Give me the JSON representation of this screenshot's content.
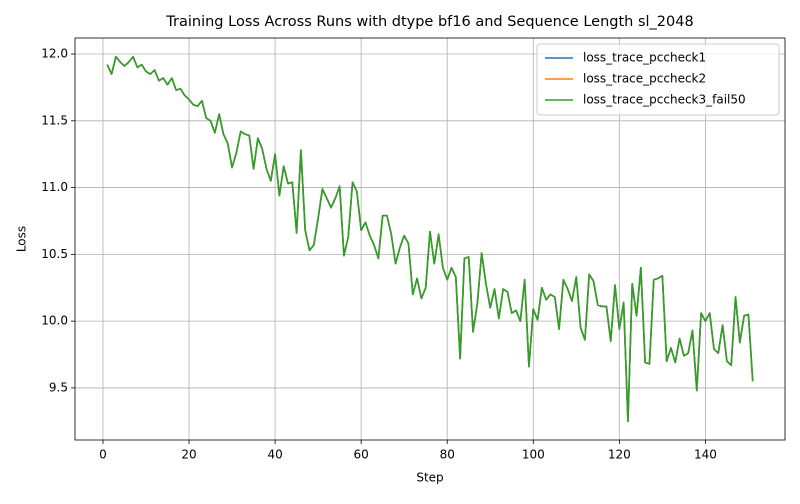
{
  "chart_data": {
    "type": "line",
    "title": "Training Loss Across Runs with dtype bf16 and Sequence Length sl_2048",
    "x_label": "Step",
    "y_label": "Loss",
    "x": [
      1,
      2,
      3,
      4,
      5,
      6,
      7,
      8,
      9,
      10,
      11,
      12,
      13,
      14,
      15,
      16,
      17,
      18,
      19,
      20,
      21,
      22,
      23,
      24,
      25,
      26,
      27,
      28,
      29,
      30,
      31,
      32,
      33,
      34,
      35,
      36,
      37,
      38,
      39,
      40,
      41,
      42,
      43,
      44,
      45,
      46,
      47,
      48,
      49,
      50,
      51,
      52,
      53,
      54,
      55,
      56,
      57,
      58,
      59,
      60,
      61,
      62,
      63,
      64,
      65,
      66,
      67,
      68,
      69,
      70,
      71,
      72,
      73,
      74,
      75,
      76,
      77,
      78,
      79,
      80,
      81,
      82,
      83,
      84,
      85,
      86,
      87,
      88,
      89,
      90,
      91,
      92,
      93,
      94,
      95,
      96,
      97,
      98,
      99,
      100,
      101,
      102,
      103,
      104,
      105,
      106,
      107,
      108,
      109,
      110,
      111,
      112,
      113,
      114,
      115,
      116,
      117,
      118,
      119,
      120,
      121,
      122,
      123,
      124,
      125,
      126,
      127,
      128,
      129,
      130,
      131,
      132,
      133,
      134,
      135,
      136,
      137,
      138,
      139,
      140,
      141,
      142,
      143,
      144,
      145,
      146,
      147,
      148,
      149,
      150,
      151
    ],
    "series": [
      {
        "name": "loss_trace_pccheck1",
        "color": "#1f77b4",
        "values": [
          11.92,
          11.85,
          11.98,
          11.94,
          11.91,
          11.94,
          11.98,
          11.9,
          11.92,
          11.87,
          11.85,
          11.88,
          11.8,
          11.82,
          11.77,
          11.82,
          11.73,
          11.74,
          11.69,
          11.66,
          11.62,
          11.61,
          11.65,
          11.52,
          11.5,
          11.41,
          11.55,
          11.4,
          11.33,
          11.15,
          11.26,
          11.42,
          11.4,
          11.39,
          11.14,
          11.37,
          11.29,
          11.14,
          11.05,
          11.25,
          10.94,
          11.16,
          11.03,
          11.04,
          10.66,
          11.28,
          10.68,
          10.53,
          10.57,
          10.77,
          10.99,
          10.92,
          10.85,
          10.92,
          11.01,
          10.49,
          10.63,
          11.04,
          10.97,
          10.68,
          10.74,
          10.64,
          10.57,
          10.47,
          10.79,
          10.79,
          10.65,
          10.43,
          10.55,
          10.64,
          10.58,
          10.2,
          10.32,
          10.17,
          10.25,
          10.67,
          10.43,
          10.65,
          10.4,
          10.31,
          10.4,
          10.33,
          9.72,
          10.47,
          10.48,
          9.92,
          10.13,
          10.51,
          10.28,
          10.1,
          10.24,
          10.02,
          10.24,
          10.22,
          10.06,
          10.08,
          10.0,
          10.31,
          9.66,
          10.09,
          10.01,
          10.25,
          10.16,
          10.2,
          10.18,
          9.94,
          10.31,
          10.24,
          10.15,
          10.33,
          9.95,
          9.86,
          10.35,
          10.3,
          10.12,
          10.11,
          10.11,
          9.85,
          10.27,
          9.94,
          10.14,
          9.25,
          10.28,
          10.04,
          10.4,
          9.69,
          9.68,
          10.31,
          10.32,
          10.34,
          9.7,
          9.8,
          9.69,
          9.87,
          9.74,
          9.76,
          9.93,
          9.48,
          10.06,
          10.0,
          10.06,
          9.79,
          9.76,
          9.97,
          9.7,
          9.67,
          10.18,
          9.84,
          10.04,
          10.05,
          9.55
        ]
      },
      {
        "name": "loss_trace_pccheck2",
        "color": "#ff7f0e",
        "values": [
          11.92,
          11.85,
          11.98,
          11.94,
          11.91,
          11.94,
          11.98,
          11.9,
          11.92,
          11.87,
          11.85,
          11.88,
          11.8,
          11.82,
          11.77,
          11.82,
          11.73,
          11.74,
          11.69,
          11.66,
          11.62,
          11.61,
          11.65,
          11.52,
          11.5,
          11.41,
          11.55,
          11.4,
          11.33,
          11.15,
          11.26,
          11.42,
          11.4,
          11.39,
          11.14,
          11.37,
          11.29,
          11.14,
          11.05,
          11.25,
          10.94,
          11.16,
          11.03,
          11.04,
          10.66,
          11.28,
          10.68,
          10.53,
          10.57,
          10.77,
          10.99,
          10.92,
          10.85,
          10.92,
          11.01,
          10.49,
          10.63,
          11.04,
          10.97,
          10.68,
          10.74,
          10.64,
          10.57,
          10.47,
          10.79,
          10.79,
          10.65,
          10.43,
          10.55,
          10.64,
          10.58,
          10.2,
          10.32,
          10.17,
          10.25,
          10.67,
          10.43,
          10.65,
          10.4,
          10.31,
          10.4,
          10.33,
          9.72,
          10.47,
          10.48,
          9.92,
          10.13,
          10.51,
          10.28,
          10.1,
          10.24,
          10.02,
          10.24,
          10.22,
          10.06,
          10.08,
          10.0,
          10.31,
          9.66,
          10.09,
          10.01,
          10.25,
          10.16,
          10.2,
          10.18,
          9.94,
          10.31,
          10.24,
          10.15,
          10.33,
          9.95,
          9.86,
          10.35,
          10.3,
          10.12,
          10.11,
          10.11,
          9.85,
          10.27,
          9.94,
          10.14,
          9.25,
          10.28,
          10.04,
          10.4,
          9.69,
          9.68,
          10.31,
          10.32,
          10.34,
          9.7,
          9.8,
          9.69,
          9.87,
          9.74,
          9.76,
          9.93,
          9.48,
          10.06,
          10.0,
          10.06,
          9.79,
          9.76,
          9.97,
          9.7,
          9.67,
          10.18,
          9.84,
          10.04,
          10.05,
          9.55
        ]
      },
      {
        "name": "loss_trace_pccheck3_fail50",
        "color": "#2ca02c",
        "values": [
          11.92,
          11.85,
          11.98,
          11.94,
          11.91,
          11.94,
          11.98,
          11.9,
          11.92,
          11.87,
          11.85,
          11.88,
          11.8,
          11.82,
          11.77,
          11.82,
          11.73,
          11.74,
          11.69,
          11.66,
          11.62,
          11.61,
          11.65,
          11.52,
          11.5,
          11.41,
          11.55,
          11.4,
          11.33,
          11.15,
          11.26,
          11.42,
          11.4,
          11.39,
          11.14,
          11.37,
          11.29,
          11.14,
          11.05,
          11.25,
          10.94,
          11.16,
          11.03,
          11.04,
          10.66,
          11.28,
          10.68,
          10.53,
          10.57,
          10.77,
          10.99,
          10.92,
          10.85,
          10.92,
          11.01,
          10.49,
          10.63,
          11.04,
          10.97,
          10.68,
          10.74,
          10.64,
          10.57,
          10.47,
          10.79,
          10.79,
          10.65,
          10.43,
          10.55,
          10.64,
          10.58,
          10.2,
          10.32,
          10.17,
          10.25,
          10.67,
          10.43,
          10.65,
          10.4,
          10.31,
          10.4,
          10.33,
          9.72,
          10.47,
          10.48,
          9.92,
          10.13,
          10.51,
          10.28,
          10.1,
          10.24,
          10.02,
          10.24,
          10.22,
          10.06,
          10.08,
          10.0,
          10.31,
          9.66,
          10.09,
          10.01,
          10.25,
          10.16,
          10.2,
          10.18,
          9.94,
          10.31,
          10.24,
          10.15,
          10.33,
          9.95,
          9.86,
          10.35,
          10.3,
          10.12,
          10.11,
          10.11,
          9.85,
          10.27,
          9.94,
          10.14,
          9.25,
          10.28,
          10.04,
          10.4,
          9.69,
          9.68,
          10.31,
          10.32,
          10.34,
          9.7,
          9.8,
          9.69,
          9.87,
          9.74,
          9.76,
          9.93,
          9.48,
          10.06,
          10.0,
          10.06,
          9.79,
          9.76,
          9.97,
          9.7,
          9.67,
          10.18,
          9.84,
          10.04,
          10.05,
          9.55
        ]
      }
    ],
    "xlim": [
      -6.5,
      158.5
    ],
    "xticks": [
      0,
      20,
      40,
      60,
      80,
      100,
      120,
      140
    ],
    "ylim": [
      9.11,
      12.12
    ],
    "yticks": [
      {
        "value": 9.5,
        "label": "9.5"
      },
      {
        "value": 10,
        "label": "10.0"
      },
      {
        "value": 10.5,
        "label": "10.5"
      },
      {
        "value": 11,
        "label": "11.0"
      },
      {
        "value": 11.5,
        "label": "11.5"
      },
      {
        "value": 12,
        "label": "12.0"
      }
    ],
    "grid": true,
    "legend": "upper right"
  }
}
